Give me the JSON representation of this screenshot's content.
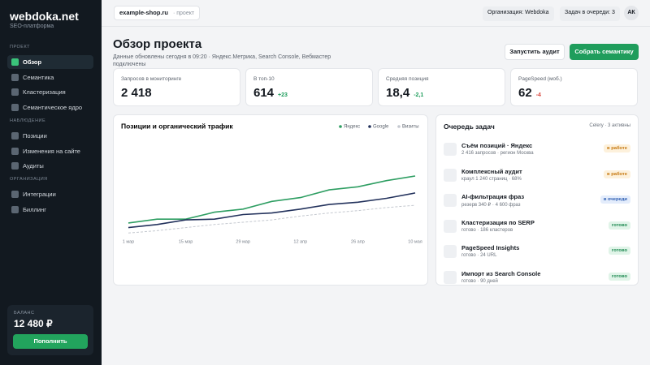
{
  "sidebar": {
    "logo": "webdoka.net",
    "tagline": "SEO-платформа",
    "sections": [
      {
        "title": "ПРОЕКТ",
        "items": [
          "Обзор",
          "Семантика",
          "Кластеризация",
          "Семантическое ядро"
        ]
      },
      {
        "title": "НАБЛЮДЕНИЕ",
        "items": [
          "Позиции",
          "Изменения на сайте",
          "Аудиты"
        ]
      },
      {
        "title": "ОРГАНИЗАЦИЯ",
        "items": [
          "Интеграции",
          "Биллинг"
        ]
      }
    ],
    "balance": {
      "label": "БАЛАНС",
      "amount": "12 480 ₽",
      "button": "Пополнить"
    }
  },
  "topbar": {
    "project": "example-shop.ru",
    "project_note": "· проект",
    "organization": "Организация: Webdoka",
    "queue": "Задач в очереди: 3",
    "avatar": "АК"
  },
  "header": {
    "title": "Обзор проекта",
    "subtitle": "Данные обновлены сегодня в 09:20 · Яндекс.Метрика, Search Console, Вебмастер подключены",
    "buttons": [
      "Запустить аудит",
      "Собрать семантику"
    ]
  },
  "kpis": [
    {
      "label": "Запросов в мониторинге",
      "value": "2 418"
    },
    {
      "label": "В топ-10",
      "value": "614",
      "delta": "+23",
      "delta_color": "#1f9d5c"
    },
    {
      "label": "Средняя позиция",
      "value": "18,4",
      "delta": "-2,1",
      "delta_color": "#1f9d5c"
    },
    {
      "label": "PageSpeed (моб.)",
      "value": "62",
      "delta": "-4",
      "delta_color": "#d9453b"
    }
  ],
  "chart": {
    "type": "line",
    "title": "Позиции и органический трафик",
    "categories": [
      "1 мар",
      null,
      "15 мар",
      null,
      "29 мар",
      null,
      "12 апр",
      null,
      "26 апр",
      null,
      "10 мая"
    ],
    "series": [
      {
        "name": "Яндекс",
        "color": "#2e9e62",
        "values": [
          18,
          23,
          23,
          32,
          36,
          46,
          51,
          61,
          65,
          73,
          79
        ]
      },
      {
        "name": "Google",
        "color": "#23325c",
        "values": [
          12,
          16,
          22,
          23,
          29,
          31,
          36,
          42,
          45,
          50,
          57
        ]
      },
      {
        "name": "Визиты",
        "color": "#c4c8cf",
        "dashed": true,
        "values": [
          5,
          8,
          12,
          16,
          19,
          22,
          27,
          31,
          34,
          38,
          41
        ]
      }
    ]
  },
  "queue": {
    "title": "Очередь задач",
    "note": "Celery · 3 активны",
    "tasks": [
      {
        "title": "Съём позиций · Яндекс",
        "detail": "2 416 запросов · регион Москва",
        "status": "в работе",
        "status_color": "#c77a12",
        "status_bg": "#fdf1dc"
      },
      {
        "title": "Комплексный аудит",
        "detail": "краул 1 240 страниц · 68%",
        "status": "в работе",
        "status_color": "#c77a12",
        "status_bg": "#fdf1dc"
      },
      {
        "title": "AI-фильтрация фраз",
        "detail": "резерв 340 ₽ · 4 600 фраз",
        "status": "в очереди",
        "status_color": "#2f5fb3",
        "status_bg": "#e3ecfb"
      },
      {
        "title": "Кластеризация по SERP",
        "detail": "готово · 186 кластеров",
        "status": "готово",
        "status_color": "#1f8a52",
        "status_bg": "#e0f4e8"
      },
      {
        "title": "PageSpeed Insights",
        "detail": "готово · 24 URL",
        "status": "готово",
        "status_color": "#1f8a52",
        "status_bg": "#e0f4e8"
      },
      {
        "title": "Импорт из Search Console",
        "detail": "готово · 90 дней",
        "status": "готово",
        "status_color": "#1f8a52",
        "status_bg": "#e0f4e8"
      }
    ]
  }
}
